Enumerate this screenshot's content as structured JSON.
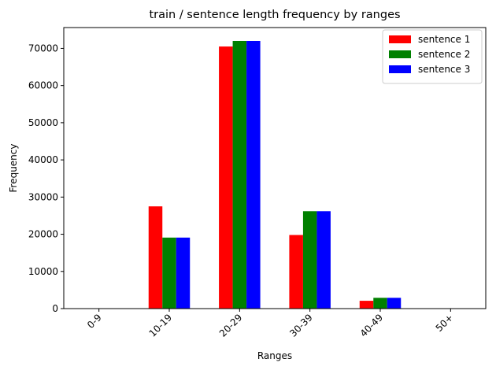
{
  "chart_data": {
    "type": "bar",
    "title": "train / sentence length frequency by ranges",
    "xlabel": "Ranges",
    "ylabel": "Frequency",
    "categories": [
      "0-9",
      "10-19",
      "20-29",
      "30-39",
      "40-49",
      "50+"
    ],
    "series": [
      {
        "name": "sentence 1",
        "color": "#ff0000",
        "values": [
          0,
          27500,
          70500,
          19800,
          2100,
          0
        ]
      },
      {
        "name": "sentence 2",
        "color": "#008000",
        "values": [
          0,
          19100,
          72000,
          26200,
          2900,
          0
        ]
      },
      {
        "name": "sentence 3",
        "color": "#0000ff",
        "values": [
          0,
          19100,
          72000,
          26200,
          2900,
          0
        ]
      }
    ],
    "ylim": [
      0,
      75600
    ],
    "yticks": [
      0,
      10000,
      20000,
      30000,
      40000,
      50000,
      60000,
      70000
    ],
    "grid": false,
    "legend_position": "top-right",
    "xtick_rotation": 45
  }
}
